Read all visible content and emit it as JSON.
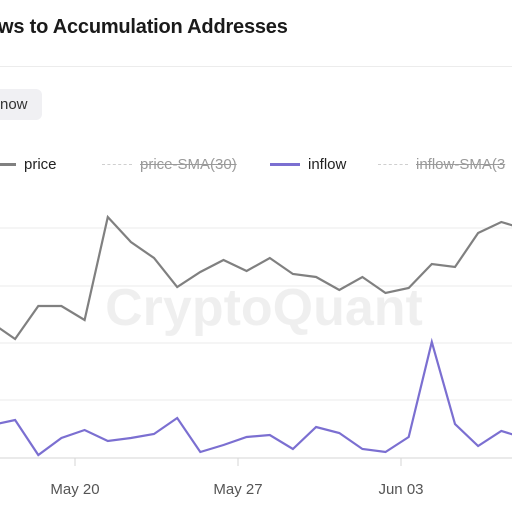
{
  "title": "ws to Accumulation Addresses",
  "chip_label": "now",
  "watermark": "CryptoQuant",
  "legend": [
    {
      "label": "price",
      "style": "solid-gray",
      "enabled": true
    },
    {
      "label": "price-SMA(30)",
      "style": "dashed",
      "enabled": false
    },
    {
      "label": "inflow",
      "style": "solid-purple",
      "enabled": true
    },
    {
      "label": "inflow-SMA(3",
      "style": "dashed",
      "enabled": false
    }
  ],
  "colors": {
    "price": "#808080",
    "inflow": "#7b6fd1",
    "grid": "#ebebeb",
    "axis": "#d6d6d6"
  },
  "chart_data": {
    "type": "line",
    "x_tick_labels": [
      "May 20",
      "May 27",
      "Jun 03"
    ],
    "grid": true,
    "series": [
      {
        "name": "price",
        "values": [
          323,
          339,
          306,
          306,
          320,
          217,
          242,
          258,
          287,
          272,
          260,
          271,
          258,
          274,
          277,
          290,
          277,
          293,
          288,
          264,
          267,
          233,
          222,
          229,
          246
        ]
      },
      {
        "name": "inflow",
        "values": [
          425,
          420,
          455,
          438,
          430,
          441,
          438,
          434,
          418,
          452,
          445,
          437,
          435,
          449,
          427,
          433,
          449,
          452,
          437,
          342,
          424,
          446,
          431,
          438,
          430
        ]
      }
    ]
  }
}
